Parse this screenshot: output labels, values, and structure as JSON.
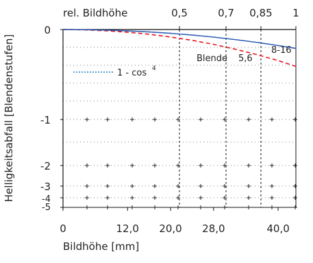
{
  "chart_data": {
    "type": "line",
    "xlabel": "Bildhöhe [mm]",
    "ylabel": "Helligkeitsabfall [Blendenstufen]",
    "top_axis_title": "rel. Bildhöhe",
    "xlim": [
      0,
      43.3
    ],
    "x_ticks": [
      {
        "value": 0,
        "label": "0"
      },
      {
        "value": 12,
        "label": "12,0"
      },
      {
        "value": 20,
        "label": "20,0"
      },
      {
        "value": 28,
        "label": "28,0"
      },
      {
        "value": 40,
        "label": "40,0"
      }
    ],
    "top_ticks": [
      {
        "value": 21.65,
        "label": "0,5"
      },
      {
        "value": 30.31,
        "label": "0,7"
      },
      {
        "value": 36.8,
        "label": "0,85"
      },
      {
        "value": 43.3,
        "label": "1"
      }
    ],
    "y_ticks": [
      {
        "value": 0,
        "label": "0"
      },
      {
        "value": -1,
        "label": "-1"
      },
      {
        "value": -2,
        "label": "-2"
      },
      {
        "value": -3,
        "label": "-3"
      },
      {
        "value": -4,
        "label": "-4"
      },
      {
        "value": -5,
        "label": "-5"
      }
    ],
    "grid": true,
    "series": [
      {
        "name": "Blende 5,6",
        "color": "#e8121e",
        "dash": "dashed",
        "x": [
          0,
          4,
          8,
          12,
          16,
          20,
          24,
          28,
          32,
          36,
          40,
          43.3
        ],
        "y": [
          0,
          -0.004,
          -0.014,
          -0.03,
          -0.053,
          -0.083,
          -0.12,
          -0.165,
          -0.218,
          -0.278,
          -0.345,
          -0.41
        ]
      },
      {
        "name": "8-16",
        "color": "#3a3aa8",
        "dash": "solid",
        "x": [
          0,
          4,
          8,
          12,
          16,
          20,
          24,
          28,
          32,
          36,
          40,
          43.3
        ],
        "y": [
          0,
          -0.002,
          -0.007,
          -0.015,
          -0.027,
          -0.042,
          -0.061,
          -0.085,
          -0.112,
          -0.143,
          -0.178,
          -0.21
        ]
      },
      {
        "name": "1 - cos⁴",
        "color": "#1a7fc1",
        "dash": "dotted",
        "x": [
          0,
          4,
          8,
          12,
          16,
          20,
          24,
          28,
          32,
          36,
          40,
          43.3
        ],
        "y": [
          0,
          -0.002,
          -0.007,
          -0.015,
          -0.027,
          -0.042,
          -0.061,
          -0.084,
          -0.111,
          -0.142,
          -0.177,
          -0.208
        ]
      }
    ],
    "annotations": {
      "blende_label": "Blende",
      "blende_value_56": "5,6",
      "blende_value_816": "8-16",
      "legend_cos": "1 - cos",
      "legend_cos_sup": "4"
    }
  }
}
